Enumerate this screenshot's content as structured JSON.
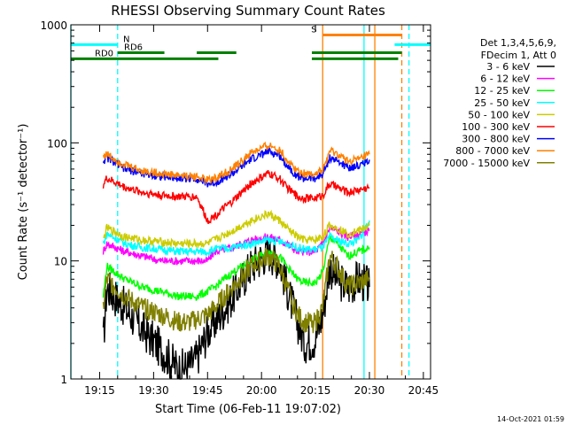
{
  "chart_data": {
    "type": "line",
    "title": "RHESSI Observing Summary Count Rates",
    "xlabel": "Start Time (06-Feb-11 19:07:02)",
    "ylabel": "Count Rate (s⁻¹ detector⁻¹)",
    "y_scale": "log",
    "ylim": [
      1,
      1000
    ],
    "xlim_minutes": [
      0,
      100
    ],
    "x_ticks": [
      {
        "m": 8,
        "label": "19:15"
      },
      {
        "m": 23,
        "label": "19:30"
      },
      {
        "m": 38,
        "label": "19:45"
      },
      {
        "m": 53,
        "label": "20:00"
      },
      {
        "m": 68,
        "label": "20:15"
      },
      {
        "m": 83,
        "label": "20:30"
      },
      {
        "m": 98,
        "label": "20:45"
      }
    ],
    "y_ticks": [
      {
        "v": 1,
        "label": "1"
      },
      {
        "v": 10,
        "label": "10"
      },
      {
        "v": 100,
        "label": "100"
      },
      {
        "v": 1000,
        "label": "1000"
      }
    ],
    "legend": {
      "position": "right",
      "header": [
        "Det 1,3,4,5,6,9,",
        "FDecim 1, Att 0"
      ]
    },
    "series": [
      {
        "name": "3 - 6 keV",
        "color": "#000000",
        "x": [
          9,
          10,
          15,
          20,
          25,
          30,
          33,
          35,
          38,
          40,
          45,
          50,
          55,
          58,
          60,
          63,
          65,
          68,
          70,
          72,
          74,
          77,
          80,
          83
        ],
        "values": [
          2.0,
          6,
          4,
          2.6,
          1.8,
          1.2,
          1.3,
          1.5,
          2.5,
          3,
          5,
          9,
          12,
          10,
          6,
          3,
          2,
          2.2,
          3.5,
          9,
          7,
          6,
          7,
          6
        ]
      },
      {
        "name": "6 - 12 keV",
        "color": "#ff00ff",
        "x": [
          9,
          10,
          15,
          20,
          25,
          30,
          33,
          35,
          38,
          40,
          45,
          50,
          55,
          58,
          60,
          63,
          65,
          68,
          70,
          72,
          74,
          77,
          80,
          83
        ],
        "values": [
          12,
          14,
          12,
          11,
          10,
          10,
          10,
          10,
          10,
          12,
          13,
          15,
          16,
          15,
          14,
          12,
          12,
          12,
          14,
          19,
          18,
          16,
          17,
          18
        ]
      },
      {
        "name": "12 - 25 keV",
        "color": "#00ff00",
        "x": [
          9,
          10,
          15,
          20,
          25,
          30,
          33,
          35,
          38,
          40,
          45,
          50,
          55,
          58,
          60,
          63,
          65,
          68,
          70,
          72,
          74,
          77,
          80,
          83
        ],
        "values": [
          5,
          9,
          7,
          6,
          5.5,
          5,
          5,
          5,
          5.5,
          6,
          8,
          10,
          12,
          11,
          9,
          7,
          6.5,
          6.5,
          8,
          16,
          14,
          11,
          12,
          13
        ]
      },
      {
        "name": "25 - 50 keV",
        "color": "#00ffff",
        "x": [
          9,
          10,
          15,
          20,
          25,
          30,
          33,
          35,
          38,
          40,
          45,
          50,
          55,
          58,
          60,
          63,
          65,
          68,
          70,
          72,
          74,
          77,
          80,
          83
        ],
        "values": [
          14,
          17,
          14,
          13,
          12.5,
          12,
          12,
          12,
          12,
          12.5,
          13,
          14,
          15,
          14.5,
          14,
          13,
          12.5,
          12.5,
          13,
          16,
          15,
          14,
          15,
          22
        ]
      },
      {
        "name": "50 - 100 keV",
        "color": "#cccc00",
        "x": [
          9,
          10,
          15,
          20,
          25,
          30,
          33,
          35,
          38,
          40,
          45,
          50,
          55,
          58,
          60,
          63,
          65,
          68,
          70,
          72,
          74,
          77,
          80,
          83
        ],
        "values": [
          15,
          19,
          16,
          15,
          14.5,
          14,
          14,
          14,
          14,
          15,
          18,
          22,
          25,
          22,
          19,
          16,
          15,
          15,
          16,
          20,
          19,
          17,
          18,
          20
        ]
      },
      {
        "name": "100 - 300 keV",
        "color": "#ff0000",
        "x": [
          9,
          10,
          15,
          20,
          25,
          30,
          33,
          35,
          38,
          40,
          45,
          50,
          55,
          58,
          60,
          63,
          65,
          68,
          70,
          72,
          74,
          77,
          80,
          83
        ],
        "values": [
          44,
          50,
          42,
          38,
          36,
          35,
          35,
          35,
          22,
          24,
          32,
          45,
          55,
          50,
          42,
          35,
          34,
          34,
          36,
          45,
          42,
          38,
          40,
          42
        ]
      },
      {
        "name": "300 - 800 keV",
        "color": "#0000ff",
        "x": [
          9,
          10,
          15,
          20,
          25,
          30,
          33,
          35,
          38,
          40,
          45,
          50,
          55,
          58,
          60,
          63,
          65,
          68,
          70,
          72,
          74,
          77,
          80,
          83
        ],
        "values": [
          70,
          75,
          60,
          55,
          52,
          50,
          50,
          50,
          45,
          46,
          55,
          72,
          85,
          78,
          65,
          52,
          50,
          50,
          54,
          75,
          70,
          62,
          64,
          72
        ]
      },
      {
        "name": "800 - 7000 keV",
        "color": "#ff8000",
        "x": [
          9,
          10,
          15,
          20,
          25,
          30,
          33,
          35,
          38,
          40,
          45,
          50,
          55,
          58,
          60,
          63,
          65,
          68,
          70,
          72,
          74,
          77,
          80,
          83
        ],
        "values": [
          78,
          80,
          65,
          58,
          55,
          53,
          52,
          52,
          48,
          50,
          60,
          82,
          95,
          88,
          72,
          58,
          55,
          55,
          58,
          85,
          80,
          70,
          72,
          80
        ]
      },
      {
        "name": "7000 - 15000 keV",
        "color": "#808000",
        "x": [
          9,
          10,
          15,
          20,
          25,
          30,
          33,
          35,
          38,
          40,
          45,
          50,
          55,
          58,
          60,
          63,
          65,
          68,
          70,
          72,
          74,
          77,
          80,
          83
        ],
        "values": [
          4,
          7,
          5,
          4,
          3.5,
          3,
          3,
          3.2,
          3.5,
          4,
          6,
          9,
          11,
          9,
          6,
          3.5,
          3,
          3,
          4,
          11,
          9,
          6,
          6.5,
          7
        ]
      }
    ],
    "annotations": [
      {
        "label": "RD0",
        "color": "#008000",
        "level": 515,
        "segments": [
          [
            0,
            41
          ],
          [
            67,
            91
          ]
        ]
      },
      {
        "label": "RD6",
        "color": "#008000",
        "level": 580,
        "segments": [
          [
            13,
            26
          ],
          [
            35,
            46
          ],
          [
            67,
            92
          ]
        ]
      },
      {
        "label": "N",
        "color": "#00ffff",
        "level": 680,
        "segments": [
          [
            0,
            13
          ],
          [
            90,
            100
          ]
        ]
      },
      {
        "label": "S",
        "color": "#ff8000",
        "level": 820,
        "segments": [
          [
            70,
            92
          ]
        ]
      }
    ],
    "vertical_markers": [
      {
        "m": 0,
        "color": "#00ffff",
        "style": "solid"
      },
      {
        "m": 13,
        "color": "#00ffff",
        "style": "dashed"
      },
      {
        "m": 70,
        "color": "#ff8000",
        "style": "solid"
      },
      {
        "m": 81.5,
        "color": "#00ffff",
        "style": "solid"
      },
      {
        "m": 84.5,
        "color": "#ff8000",
        "style": "solid"
      },
      {
        "m": 92,
        "color": "#ff8000",
        "style": "dashed"
      },
      {
        "m": 94,
        "color": "#00ffff",
        "style": "dashed"
      }
    ],
    "footer_date": "14-Oct-2021 01:59"
  }
}
